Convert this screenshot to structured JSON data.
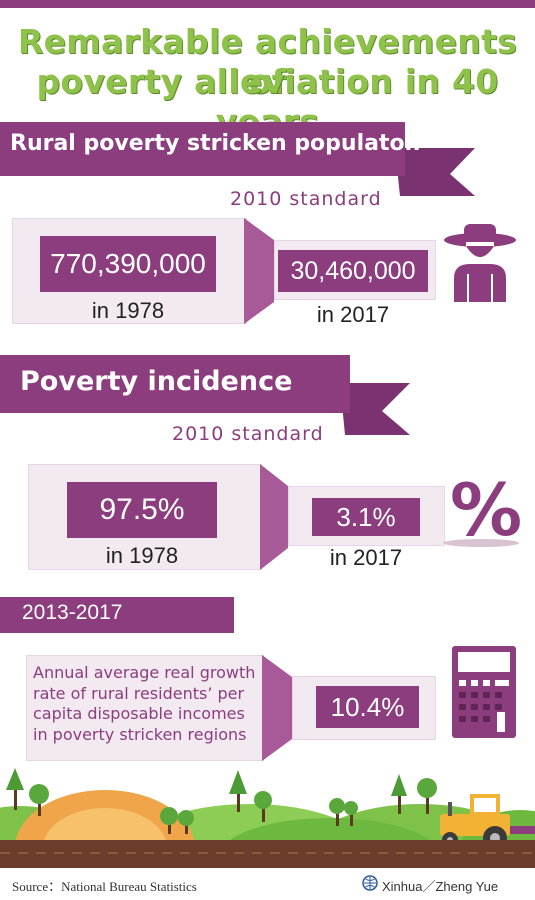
{
  "header": {
    "title_line1": "Remarkable achievements of",
    "title_line2": "poverty alleviation in 40 years"
  },
  "section1": {
    "title": "Rural poverty stricken populaton",
    "standard": "2010 standard",
    "value_1978": "770,390,000",
    "label_1978": "in 1978",
    "value_2017": "30,460,000",
    "label_2017": "in 2017",
    "icon": "farmer-icon"
  },
  "section2": {
    "title": "Poverty incidence",
    "standard": "2010 standard",
    "value_1978": "97.5%",
    "label_1978": "in 1978",
    "value_2017": "3.1%",
    "label_2017": "in 2017",
    "icon": "percent-icon",
    "icon_glyph": "%"
  },
  "section3": {
    "period": "2013-2017",
    "description": "Annual average real growth rate of rural residents’ per capita disposable incomes in poverty stricken regions",
    "value": "10.4%",
    "icon": "calculator-icon"
  },
  "footer": {
    "source": "Source：National Bureau Statistics",
    "credit": "Xinhua／Zheng Yue"
  },
  "colors": {
    "primary": "#8c3d7d",
    "panel": "#f3e9f1",
    "title_green": "#8fc24a"
  }
}
